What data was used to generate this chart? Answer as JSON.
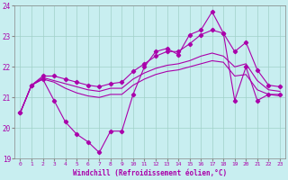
{
  "xlabel": "Windchill (Refroidissement éolien,°C)",
  "background_color": "#c8eef0",
  "grid_color": "#a0d0c8",
  "line_color": "#aa00aa",
  "xlim": [
    -0.5,
    23.5
  ],
  "ylim": [
    19,
    24
  ],
  "yticks": [
    19,
    20,
    21,
    22,
    23,
    24
  ],
  "xticks": [
    0,
    1,
    2,
    3,
    4,
    5,
    6,
    7,
    8,
    9,
    10,
    11,
    12,
    13,
    14,
    15,
    16,
    17,
    18,
    19,
    20,
    21,
    22,
    23
  ],
  "series": {
    "line_jagged_x": [
      0,
      1,
      2,
      3,
      4,
      5,
      6,
      7,
      8,
      9,
      10,
      11,
      12,
      13,
      14,
      15,
      16,
      17,
      18,
      19,
      20,
      21,
      22,
      23
    ],
    "line_jagged_y": [
      20.5,
      21.4,
      21.6,
      20.9,
      20.2,
      19.8,
      19.55,
      19.2,
      19.9,
      19.9,
      21.1,
      22.0,
      22.5,
      22.6,
      22.4,
      23.05,
      23.2,
      23.8,
      23.1,
      20.9,
      22.0,
      20.9,
      21.1,
      21.1
    ],
    "line_upper_x": [
      0,
      1,
      2,
      3,
      4,
      5,
      6,
      7,
      8,
      9,
      10,
      11,
      12,
      13,
      14,
      15,
      16,
      17,
      18,
      19,
      20,
      21,
      22,
      23
    ],
    "line_upper_y": [
      20.5,
      21.4,
      21.7,
      21.7,
      21.6,
      21.5,
      21.4,
      21.35,
      21.45,
      21.5,
      21.85,
      22.1,
      22.35,
      22.5,
      22.5,
      22.75,
      23.05,
      23.2,
      23.1,
      22.5,
      22.8,
      21.9,
      21.4,
      21.35
    ],
    "line_mid_x": [
      0,
      1,
      2,
      3,
      4,
      5,
      6,
      7,
      8,
      9,
      10,
      11,
      12,
      13,
      14,
      15,
      16,
      17,
      18,
      19,
      20,
      21,
      22,
      23
    ],
    "line_mid_y": [
      20.5,
      21.4,
      21.65,
      21.55,
      21.45,
      21.35,
      21.25,
      21.2,
      21.3,
      21.3,
      21.6,
      21.8,
      21.95,
      22.05,
      22.1,
      22.2,
      22.35,
      22.45,
      22.35,
      22.0,
      22.1,
      21.55,
      21.25,
      21.2
    ],
    "line_lower_x": [
      0,
      1,
      2,
      3,
      4,
      5,
      6,
      7,
      8,
      9,
      10,
      11,
      12,
      13,
      14,
      15,
      16,
      17,
      18,
      19,
      20,
      21,
      22,
      23
    ],
    "line_lower_y": [
      20.5,
      21.4,
      21.6,
      21.5,
      21.3,
      21.15,
      21.05,
      21.0,
      21.1,
      21.1,
      21.4,
      21.6,
      21.75,
      21.85,
      21.9,
      22.0,
      22.1,
      22.2,
      22.15,
      21.7,
      21.75,
      21.25,
      21.1,
      21.05
    ]
  }
}
